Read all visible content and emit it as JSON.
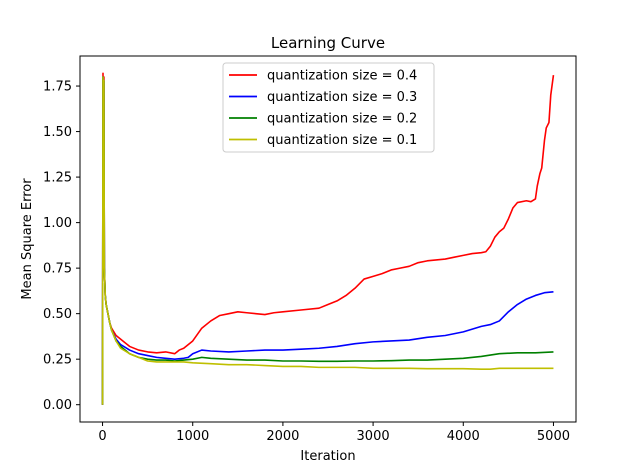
{
  "chart_data": {
    "type": "line",
    "title": "Learning Curve",
    "xlabel": "Iteration",
    "ylabel": "Mean Square Error",
    "xlim": [
      -250,
      5250
    ],
    "ylim": [
      -0.095,
      1.915
    ],
    "xticks": [
      0,
      1000,
      2000,
      3000,
      4000,
      5000
    ],
    "xtick_labels": [
      "0",
      "1000",
      "2000",
      "3000",
      "4000",
      "5000"
    ],
    "yticks": [
      0.0,
      0.25,
      0.5,
      0.75,
      1.0,
      1.25,
      1.5,
      1.75
    ],
    "ytick_labels": [
      "0.00",
      "0.25",
      "0.50",
      "0.75",
      "1.00",
      "1.25",
      "1.50",
      "1.75"
    ],
    "grid": false,
    "legend": "upper-center",
    "series": [
      {
        "name": "quantization size = 0.4",
        "color": "#ff0000",
        "x": [
          0,
          5,
          10,
          15,
          20,
          30,
          40,
          60,
          80,
          100,
          150,
          200,
          300,
          400,
          500,
          600,
          700,
          800,
          850,
          900,
          1000,
          1100,
          1200,
          1300,
          1400,
          1500,
          1600,
          1700,
          1800,
          1900,
          2000,
          2200,
          2400,
          2500,
          2600,
          2700,
          2800,
          2900,
          3000,
          3100,
          3200,
          3300,
          3400,
          3500,
          3600,
          3700,
          3800,
          3900,
          4000,
          4100,
          4200,
          4250,
          4300,
          4350,
          4400,
          4450,
          4500,
          4550,
          4600,
          4700,
          4750,
          4800,
          4820,
          4850,
          4870,
          4900,
          4920,
          4950,
          4970,
          5000
        ],
        "y": [
          0.0,
          1.82,
          0.9,
          1.8,
          0.75,
          0.6,
          0.55,
          0.5,
          0.45,
          0.42,
          0.38,
          0.36,
          0.32,
          0.3,
          0.29,
          0.285,
          0.29,
          0.28,
          0.3,
          0.31,
          0.35,
          0.42,
          0.46,
          0.49,
          0.5,
          0.51,
          0.505,
          0.5,
          0.495,
          0.505,
          0.51,
          0.52,
          0.53,
          0.55,
          0.57,
          0.6,
          0.64,
          0.69,
          0.705,
          0.72,
          0.74,
          0.75,
          0.76,
          0.78,
          0.79,
          0.795,
          0.8,
          0.81,
          0.82,
          0.83,
          0.835,
          0.84,
          0.87,
          0.92,
          0.95,
          0.97,
          1.02,
          1.08,
          1.11,
          1.12,
          1.115,
          1.13,
          1.2,
          1.27,
          1.3,
          1.45,
          1.52,
          1.55,
          1.7,
          1.81
        ]
      },
      {
        "name": "quantization size = 0.3",
        "color": "#0000ff",
        "x": [
          0,
          5,
          10,
          15,
          20,
          30,
          40,
          60,
          80,
          100,
          150,
          200,
          300,
          400,
          500,
          600,
          700,
          800,
          900,
          950,
          1000,
          1100,
          1200,
          1400,
          1600,
          1800,
          2000,
          2200,
          2400,
          2600,
          2800,
          3000,
          3200,
          3400,
          3600,
          3800,
          4000,
          4200,
          4300,
          4400,
          4500,
          4600,
          4700,
          4800,
          4900,
          5000
        ],
        "y": [
          0.0,
          1.8,
          0.9,
          1.78,
          0.75,
          0.6,
          0.55,
          0.5,
          0.45,
          0.41,
          0.36,
          0.33,
          0.3,
          0.28,
          0.27,
          0.26,
          0.255,
          0.25,
          0.255,
          0.26,
          0.28,
          0.3,
          0.295,
          0.29,
          0.295,
          0.3,
          0.3,
          0.305,
          0.31,
          0.32,
          0.335,
          0.345,
          0.35,
          0.355,
          0.37,
          0.38,
          0.4,
          0.43,
          0.44,
          0.46,
          0.51,
          0.55,
          0.58,
          0.6,
          0.615,
          0.62
        ]
      },
      {
        "name": "quantization size = 0.2",
        "color": "#008000",
        "x": [
          0,
          5,
          10,
          15,
          20,
          30,
          40,
          60,
          80,
          100,
          150,
          200,
          300,
          400,
          500,
          600,
          700,
          800,
          900,
          1000,
          1100,
          1200,
          1400,
          1600,
          1800,
          2000,
          2200,
          2400,
          2600,
          2800,
          3000,
          3200,
          3400,
          3600,
          3800,
          4000,
          4200,
          4400,
          4600,
          4800,
          5000
        ],
        "y": [
          0.0,
          1.8,
          0.9,
          1.78,
          0.75,
          0.6,
          0.55,
          0.5,
          0.45,
          0.41,
          0.35,
          0.32,
          0.28,
          0.26,
          0.25,
          0.245,
          0.245,
          0.24,
          0.245,
          0.25,
          0.26,
          0.255,
          0.25,
          0.245,
          0.245,
          0.24,
          0.24,
          0.238,
          0.238,
          0.24,
          0.24,
          0.242,
          0.245,
          0.245,
          0.25,
          0.255,
          0.265,
          0.28,
          0.285,
          0.285,
          0.29
        ]
      },
      {
        "name": "quantization size = 0.1",
        "color": "#bfbf00",
        "x": [
          0,
          5,
          10,
          15,
          20,
          30,
          40,
          60,
          80,
          100,
          150,
          200,
          300,
          400,
          500,
          600,
          700,
          800,
          900,
          1000,
          1200,
          1400,
          1600,
          1800,
          2000,
          2200,
          2400,
          2600,
          2800,
          3000,
          3200,
          3400,
          3600,
          3800,
          4000,
          4200,
          4300,
          4400,
          4600,
          4800,
          5000
        ],
        "y": [
          0.0,
          1.8,
          0.9,
          1.78,
          0.75,
          0.6,
          0.55,
          0.5,
          0.45,
          0.41,
          0.35,
          0.31,
          0.28,
          0.26,
          0.24,
          0.235,
          0.235,
          0.235,
          0.235,
          0.23,
          0.225,
          0.22,
          0.22,
          0.215,
          0.21,
          0.21,
          0.205,
          0.205,
          0.205,
          0.2,
          0.2,
          0.2,
          0.198,
          0.198,
          0.198,
          0.195,
          0.195,
          0.2,
          0.2,
          0.2,
          0.2
        ]
      }
    ]
  }
}
